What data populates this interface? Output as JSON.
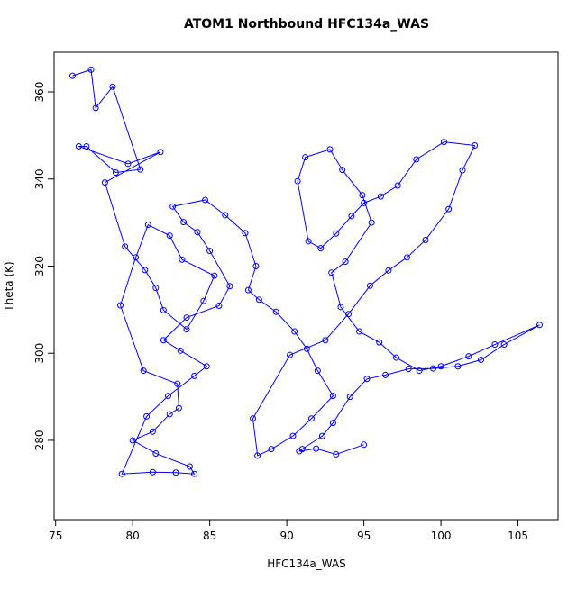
{
  "chart_data": {
    "type": "scatter",
    "connected": true,
    "title": "ATOM1 Northbound HFC134a_WAS",
    "x_label": "HFC134a_WAS",
    "y_label": "Theta (K)",
    "color": "#0000ff",
    "x": [
      76.1,
      77.3,
      77.6,
      78.7,
      80.5,
      78.9,
      77.0,
      76.5,
      79.7,
      81.8,
      78.2,
      79.5,
      80.8,
      81.5,
      82.0,
      83.5,
      84.6,
      85.3,
      83.2,
      82.4,
      81.0,
      80.2,
      79.2,
      80.7,
      82.9,
      83.0,
      82.4,
      81.3,
      80.0,
      81.5,
      83.7,
      84.0,
      82.8,
      81.3,
      79.3,
      80.9,
      82.3,
      84.0,
      84.8,
      83.1,
      82.0,
      83.5,
      85.6,
      86.3,
      85.0,
      84.2,
      83.3,
      82.6,
      84.7,
      86.0,
      87.3,
      88.0,
      87.5,
      88.2,
      89.3,
      90.5,
      91.3,
      92.0,
      93.0,
      91.6,
      90.4,
      89.0,
      88.1,
      87.8,
      90.2,
      92.5,
      94.0,
      95.4,
      96.6,
      97.8,
      99.0,
      100.5,
      101.4,
      102.2,
      100.2,
      98.4,
      97.2,
      96.1,
      95.0,
      94.2,
      93.2,
      92.2,
      91.4,
      90.7,
      91.2,
      92.8,
      93.6,
      94.9,
      95.5,
      93.8,
      92.9,
      93.5,
      94.7,
      96.0,
      97.1,
      98.6,
      100.0,
      101.8,
      103.5,
      106.4,
      104.1,
      102.6,
      101.1,
      99.5,
      97.9,
      96.4,
      95.2,
      94.1,
      93.0,
      92.3,
      91.0,
      90.8,
      91.9,
      93.2,
      95.0
    ],
    "y": [
      363.7,
      365.1,
      356.3,
      361.2,
      342.2,
      341.5,
      347.5,
      347.5,
      343.5,
      346.2,
      339.2,
      324.5,
      319.1,
      315.0,
      309.9,
      305.5,
      312.0,
      317.8,
      321.5,
      327.0,
      329.5,
      322.0,
      311.0,
      296.0,
      293.0,
      287.4,
      286.0,
      282.0,
      280.0,
      277.0,
      274.0,
      272.3,
      272.6,
      272.7,
      272.3,
      285.5,
      290.2,
      294.8,
      297.0,
      300.6,
      303.0,
      308.2,
      310.9,
      315.4,
      323.5,
      327.8,
      330.1,
      333.7,
      335.2,
      331.7,
      327.6,
      320.0,
      314.5,
      312.3,
      309.5,
      305.0,
      301.0,
      296.0,
      290.2,
      285.0,
      281.0,
      278.0,
      276.5,
      285.0,
      299.6,
      303.0,
      309.0,
      315.5,
      319.0,
      322.0,
      326.0,
      333.1,
      342.0,
      347.7,
      348.5,
      344.5,
      338.5,
      336.0,
      334.5,
      331.5,
      327.5,
      324.1,
      325.7,
      339.5,
      345.0,
      346.8,
      342.1,
      336.3,
      330.0,
      321.0,
      318.5,
      310.6,
      305.0,
      302.5,
      299.0,
      296.0,
      297.0,
      299.3,
      302.0,
      306.5,
      302.0,
      298.5,
      297.0,
      296.5,
      296.4,
      295.0,
      294.1,
      290.0,
      284.0,
      281.0,
      278.0,
      277.5,
      278.1,
      276.8,
      279.0
    ],
    "xlim": [
      74.9,
      107.6
    ],
    "ylim": [
      261.8,
      369.1
    ],
    "xticks": [
      75,
      80,
      85,
      90,
      95,
      100,
      105
    ],
    "yticks": [
      280,
      300,
      320,
      340,
      360
    ]
  }
}
